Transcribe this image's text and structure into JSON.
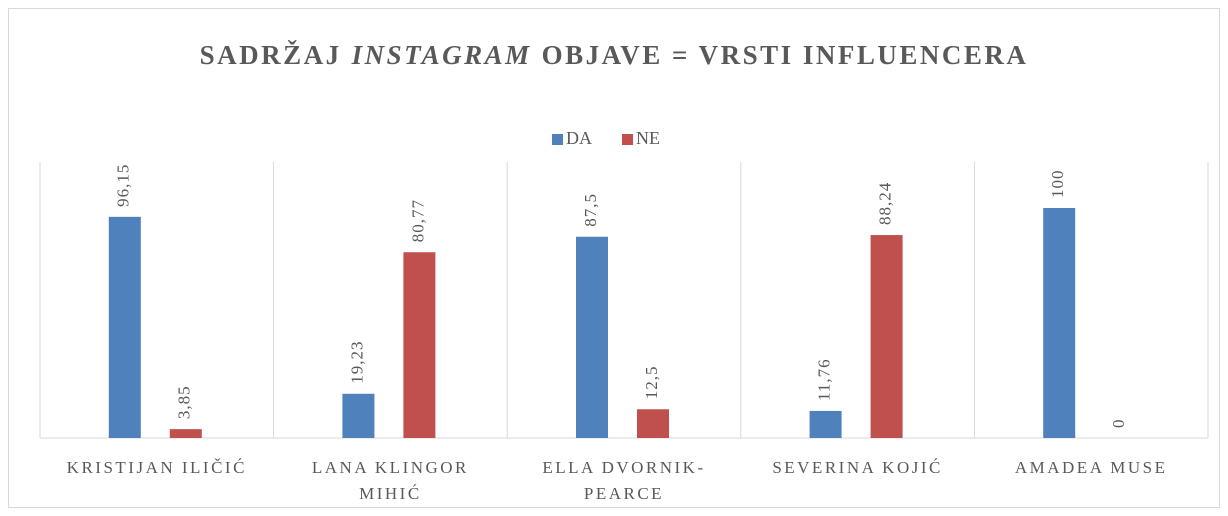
{
  "chart_data": {
    "type": "bar",
    "title": [
      "SADRŽAJ",
      "INSTAGRAM",
      "OBJAVE = VRSTI INFLUENCERA"
    ],
    "categories": [
      "KRISTIJAN ILIČIĆ",
      "LANA KLINGOR MIHIĆ",
      "ELLA DVORNIK-PEARCE",
      "SEVERINA KOJIĆ",
      "AMADEA MUSE"
    ],
    "series": [
      {
        "name": "DA",
        "color": "#4f81bd",
        "values": [
          96.15,
          19.23,
          87.5,
          11.76,
          100
        ],
        "value_labels": [
          "96,15",
          "19,23",
          "87,5",
          "11,76",
          "100"
        ]
      },
      {
        "name": "NE",
        "color": "#c0504d",
        "values": [
          3.85,
          80.77,
          12.5,
          88.24,
          0
        ],
        "value_labels": [
          "3,85",
          "80,77",
          "12,5",
          "88,24",
          "0"
        ]
      }
    ],
    "ylim": [
      0,
      120
    ],
    "legend": "top"
  }
}
